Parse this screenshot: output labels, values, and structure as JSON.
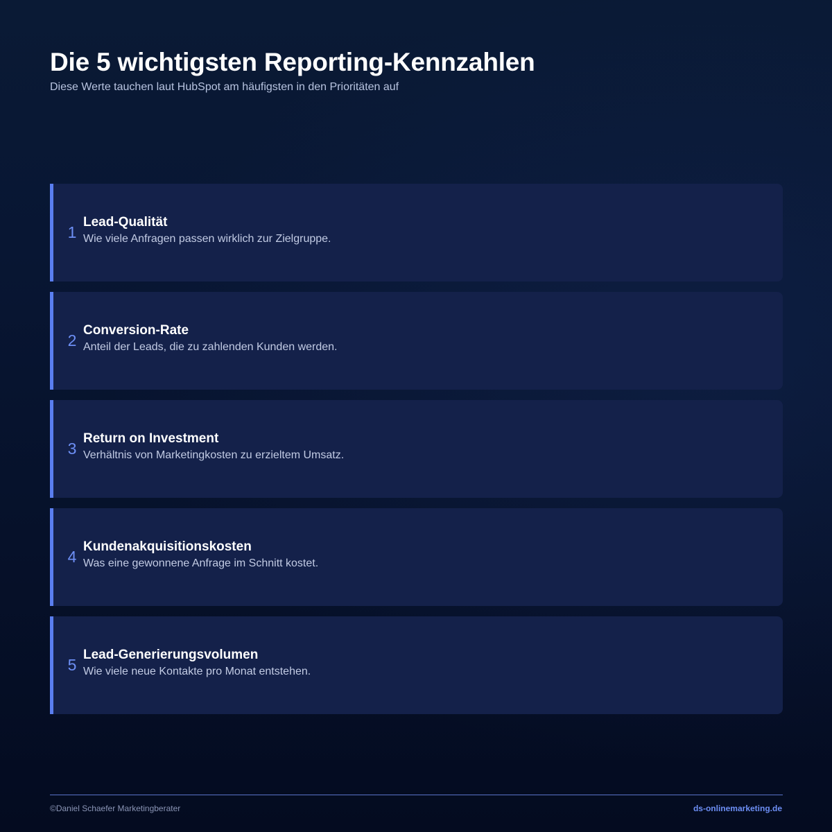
{
  "header": {
    "title": "Die 5 wichtigsten Reporting-Kennzahlen",
    "subtitle": "Diese Werte tauchen laut HubSpot am häufigsten in den Prioritäten auf"
  },
  "items": [
    {
      "number": "1",
      "title": "Lead-Qualität",
      "description": "Wie viele Anfragen passen wirklich zur Zielgruppe."
    },
    {
      "number": "2",
      "title": "Conversion-Rate",
      "description": "Anteil der Leads, die zu zahlenden Kunden werden."
    },
    {
      "number": "3",
      "title": "Return on Investment",
      "description": "Verhältnis von Marketingkosten zu erzieltem Umsatz."
    },
    {
      "number": "4",
      "title": "Kundenakquisitionskosten",
      "description": "Was eine gewonnene Anfrage im Schnitt kostet."
    },
    {
      "number": "5",
      "title": "Lead-Generierungsvolumen",
      "description": "Wie viele neue Kontakte pro Monat entstehen."
    }
  ],
  "footer": {
    "copyright": "©Daniel Schaefer Marketingberater",
    "website": "ds-onlinemarketing.de"
  },
  "colors": {
    "accent": "#5a7ef0",
    "card_background": "#14214a",
    "page_background": "#081633"
  }
}
